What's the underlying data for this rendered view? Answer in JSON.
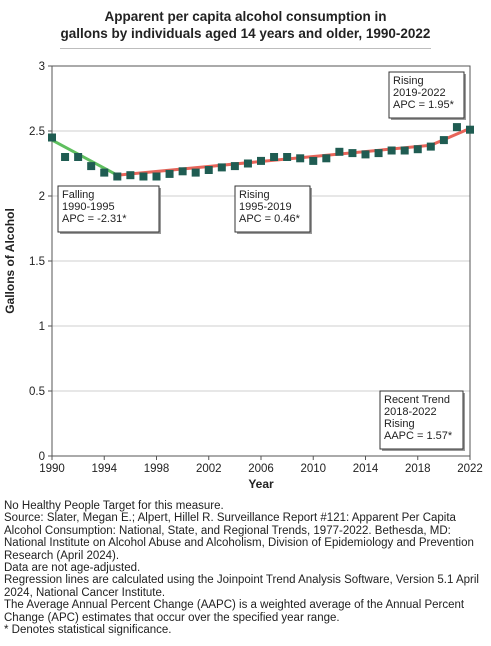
{
  "title_line1": "Apparent per capita alcohol consumption in",
  "title_line2": "gallons by individuals aged 14 years and older, 1990-2022",
  "chart_data": {
    "type": "line",
    "xlabel": "Year",
    "ylabel": "Gallons of Alcohol",
    "xlim": [
      1990,
      2022
    ],
    "ylim": [
      0,
      3
    ],
    "x_ticks": [
      "1990",
      "1994",
      "1998",
      "2002",
      "2006",
      "2010",
      "2014",
      "2018",
      "2022"
    ],
    "y_ticks": [
      "0",
      "0.5",
      "1",
      "1.5",
      "2",
      "2.5",
      "3"
    ],
    "grid": "horizontal",
    "observed": {
      "x": [
        1990,
        1991,
        1992,
        1993,
        1994,
        1995,
        1996,
        1997,
        1998,
        1999,
        2000,
        2001,
        2002,
        2003,
        2004,
        2005,
        2006,
        2007,
        2008,
        2009,
        2010,
        2011,
        2012,
        2013,
        2014,
        2015,
        2016,
        2017,
        2018,
        2019,
        2020,
        2021,
        2022
      ],
      "y": [
        2.45,
        2.3,
        2.3,
        2.23,
        2.18,
        2.15,
        2.16,
        2.15,
        2.15,
        2.17,
        2.19,
        2.18,
        2.2,
        2.22,
        2.23,
        2.25,
        2.27,
        2.3,
        2.3,
        2.29,
        2.27,
        2.29,
        2.34,
        2.33,
        2.32,
        2.33,
        2.35,
        2.35,
        2.36,
        2.38,
        2.43,
        2.53,
        2.51
      ],
      "marker_color": "#1f5c52"
    },
    "trend_segments": [
      {
        "x": [
          1990,
          1995
        ],
        "y": [
          2.43,
          2.16
        ],
        "color": "#5fbf5f"
      },
      {
        "x": [
          1995,
          2019
        ],
        "y": [
          2.16,
          2.39
        ],
        "color": "#e8655a"
      },
      {
        "x": [
          2019,
          2022
        ],
        "y": [
          2.39,
          2.52
        ],
        "color": "#e8655a"
      }
    ],
    "annotations": [
      {
        "lines": [
          "Falling",
          "1990-1995",
          "APC = -2.31*"
        ]
      },
      {
        "lines": [
          "Rising",
          "1995-2019",
          "APC =  0.46*"
        ]
      },
      {
        "lines": [
          "Rising",
          "2019-2022",
          "APC =  1.95*"
        ]
      },
      {
        "lines": [
          "Recent Trend",
          "2018-2022",
          "Rising",
          "AAPC =  1.57*"
        ]
      }
    ]
  },
  "notes": [
    "No Healthy People Target for this measure.",
    "Source: Slater, Megan E.; Alpert, Hillel R. Surveillance Report #121: Apparent Per Capita Alcohol Consumption: National, State, and Regional Trends, 1977-2022. Bethesda, MD: National Institute on Alcohol Abuse and Alcoholism, Division of Epidemiology and Prevention Research (April 2024).",
    "Data are not age-adjusted.",
    "Regression lines are calculated using the Joinpoint Trend Analysis Software, Version 5.1 April 2024, National Cancer Institute.",
    "The Average Annual Percent Change (AAPC) is a weighted average of the Annual Percent Change (APC) estimates that occur over the specified year range.",
    "* Denotes statistical significance."
  ]
}
